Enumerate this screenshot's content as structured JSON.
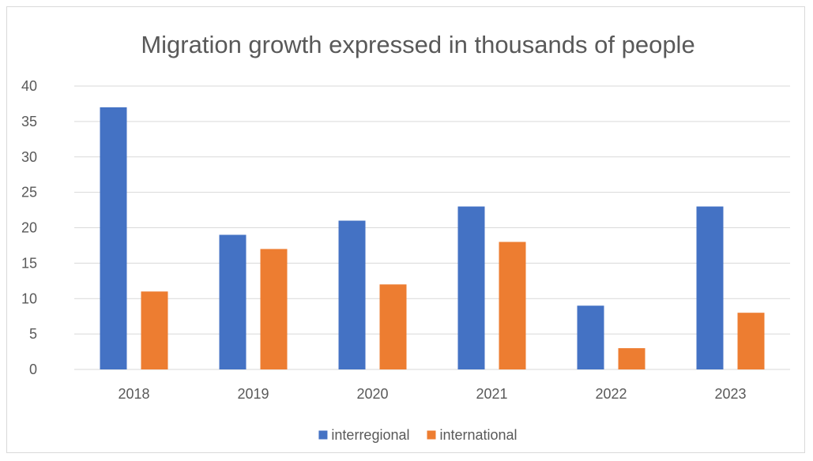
{
  "chart_data": {
    "type": "bar",
    "title": "Migration growth expressed in thousands of people",
    "xlabel": "",
    "ylabel": "",
    "categories": [
      "2018",
      "2019",
      "2020",
      "2021",
      "2022",
      "2023"
    ],
    "series": [
      {
        "name": "interregional",
        "values": [
          37,
          19,
          21,
          23,
          9,
          23
        ],
        "color": "#4472c4"
      },
      {
        "name": "international",
        "values": [
          11,
          17,
          12,
          18,
          3,
          8
        ],
        "color": "#ed7d31"
      }
    ],
    "ylim": [
      0,
      40
    ],
    "yticks": [
      0,
      5,
      10,
      15,
      20,
      25,
      30,
      35,
      40
    ],
    "grid": true,
    "legend_position": "bottom",
    "colors": {
      "gridline": "#d9d9d9",
      "axis_line": "#d9d9d9",
      "text": "#595959",
      "border": "#d9d9d9"
    }
  }
}
